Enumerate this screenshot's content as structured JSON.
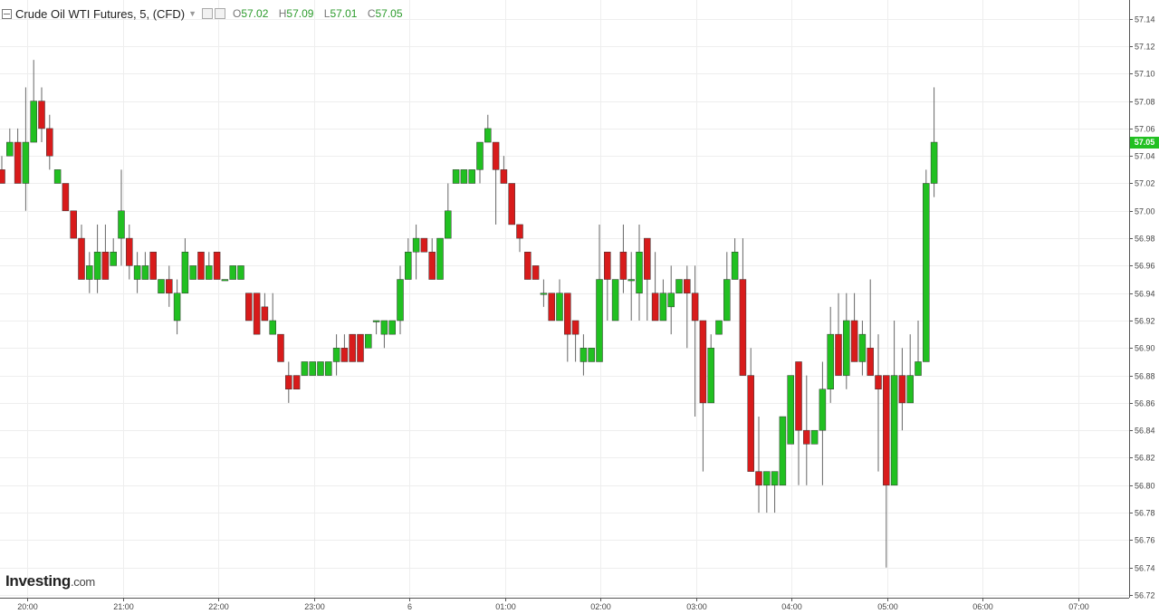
{
  "header": {
    "title": "Crude Oil WTI Futures, 5, (CFD)",
    "open_label": "O",
    "open": "57.02",
    "high_label": "H",
    "high": "57.09",
    "low_label": "L",
    "low": "57.01",
    "close_label": "C",
    "close": "57.05"
  },
  "logo": {
    "brand": "Investing",
    "suffix": ".com"
  },
  "colors": {
    "up": "#21c021",
    "down": "#d81b1b",
    "grid": "#eeeeee",
    "axis": "#555555",
    "last_price_bg": "#21c021"
  },
  "chart_data": {
    "type": "candlestick",
    "interval": "5",
    "last_price": "57.05",
    "x_ticks": [
      "20:00",
      "21:00",
      "22:00",
      "23:00",
      "6",
      "01:00",
      "02:00",
      "03:00",
      "04:00",
      "05:00",
      "06:00",
      "07:00"
    ],
    "y_ticks": [
      "57.14",
      "57.12",
      "57.10",
      "57.08",
      "57.06",
      "57.04",
      "57.02",
      "57.00",
      "56.98",
      "56.96",
      "56.94",
      "56.92",
      "56.90",
      "56.88",
      "56.86",
      "56.84",
      "56.82",
      "56.80",
      "56.78",
      "56.76",
      "56.74",
      "56.72"
    ],
    "ylim": [
      56.72,
      57.15
    ],
    "candles": [
      [
        57.03,
        57.04,
        57.02,
        57.02
      ],
      [
        57.04,
        57.06,
        57.04,
        57.05
      ],
      [
        57.05,
        57.06,
        57.02,
        57.02
      ],
      [
        57.02,
        57.09,
        57.0,
        57.05
      ],
      [
        57.05,
        57.11,
        57.05,
        57.08
      ],
      [
        57.08,
        57.09,
        57.05,
        57.06
      ],
      [
        57.06,
        57.07,
        57.03,
        57.04
      ],
      [
        57.02,
        57.03,
        57.02,
        57.03
      ],
      [
        57.02,
        57.02,
        57.0,
        57.0
      ],
      [
        57.0,
        57.0,
        56.98,
        56.98
      ],
      [
        56.98,
        56.99,
        56.95,
        56.95
      ],
      [
        56.95,
        56.97,
        56.94,
        56.96
      ],
      [
        56.95,
        56.99,
        56.94,
        56.97
      ],
      [
        56.97,
        56.99,
        56.95,
        56.95
      ],
      [
        56.96,
        56.98,
        56.96,
        56.97
      ],
      [
        56.98,
        57.03,
        56.96,
        57.0
      ],
      [
        56.98,
        56.99,
        56.95,
        56.96
      ],
      [
        56.95,
        56.97,
        56.94,
        56.96
      ],
      [
        56.95,
        56.97,
        56.95,
        56.96
      ],
      [
        56.97,
        56.97,
        56.95,
        56.95
      ],
      [
        56.94,
        56.95,
        56.94,
        56.95
      ],
      [
        56.95,
        56.96,
        56.93,
        56.94
      ],
      [
        56.92,
        56.95,
        56.91,
        56.94
      ],
      [
        56.94,
        56.98,
        56.94,
        56.97
      ],
      [
        56.95,
        56.96,
        56.95,
        56.96
      ],
      [
        56.97,
        56.97,
        56.95,
        56.95
      ],
      [
        56.95,
        56.97,
        56.95,
        56.96
      ],
      [
        56.97,
        56.97,
        56.95,
        56.95
      ],
      [
        56.95,
        56.95,
        56.95,
        56.95
      ],
      [
        56.95,
        56.96,
        56.95,
        56.96
      ],
      [
        56.95,
        56.96,
        56.95,
        56.96
      ],
      [
        56.94,
        56.94,
        56.92,
        56.92
      ],
      [
        56.94,
        56.94,
        56.91,
        56.91
      ],
      [
        56.93,
        56.94,
        56.92,
        56.92
      ],
      [
        56.91,
        56.94,
        56.91,
        56.92
      ],
      [
        56.91,
        56.91,
        56.89,
        56.89
      ],
      [
        56.88,
        56.89,
        56.86,
        56.87
      ],
      [
        56.88,
        56.88,
        56.87,
        56.87
      ],
      [
        56.88,
        56.89,
        56.88,
        56.89
      ],
      [
        56.88,
        56.89,
        56.88,
        56.89
      ],
      [
        56.88,
        56.89,
        56.88,
        56.89
      ],
      [
        56.88,
        56.89,
        56.88,
        56.89
      ],
      [
        56.89,
        56.91,
        56.88,
        56.9
      ],
      [
        56.9,
        56.91,
        56.89,
        56.89
      ],
      [
        56.91,
        56.91,
        56.89,
        56.89
      ],
      [
        56.91,
        56.91,
        56.89,
        56.89
      ],
      [
        56.9,
        56.91,
        56.9,
        56.91
      ],
      [
        56.92,
        56.92,
        56.91,
        56.92
      ],
      [
        56.91,
        56.92,
        56.9,
        56.92
      ],
      [
        56.91,
        56.92,
        56.91,
        56.92
      ],
      [
        56.92,
        56.96,
        56.91,
        56.95
      ],
      [
        56.95,
        56.98,
        56.95,
        56.97
      ],
      [
        56.97,
        56.99,
        56.95,
        56.98
      ],
      [
        56.98,
        56.98,
        56.97,
        56.97
      ],
      [
        56.97,
        56.98,
        56.95,
        56.95
      ],
      [
        56.95,
        56.98,
        56.95,
        56.98
      ],
      [
        56.98,
        57.02,
        56.98,
        57.0
      ],
      [
        57.02,
        57.03,
        57.02,
        57.03
      ],
      [
        57.02,
        57.03,
        57.02,
        57.03
      ],
      [
        57.02,
        57.03,
        57.02,
        57.03
      ],
      [
        57.03,
        57.05,
        57.02,
        57.05
      ],
      [
        57.05,
        57.07,
        57.05,
        57.06
      ],
      [
        57.05,
        57.05,
        56.99,
        57.03
      ],
      [
        57.03,
        57.04,
        57.02,
        57.02
      ],
      [
        57.02,
        57.02,
        56.99,
        56.99
      ],
      [
        56.99,
        56.99,
        56.97,
        56.98
      ],
      [
        56.97,
        56.97,
        56.95,
        56.95
      ],
      [
        56.96,
        56.96,
        56.95,
        56.95
      ],
      [
        56.94,
        56.95,
        56.93,
        56.94
      ],
      [
        56.94,
        56.94,
        56.92,
        56.92
      ],
      [
        56.92,
        56.95,
        56.92,
        56.94
      ],
      [
        56.94,
        56.94,
        56.89,
        56.91
      ],
      [
        56.92,
        56.92,
        56.89,
        56.91
      ],
      [
        56.89,
        56.91,
        56.88,
        56.9
      ],
      [
        56.89,
        56.9,
        56.89,
        56.9
      ],
      [
        56.89,
        56.99,
        56.89,
        56.95
      ],
      [
        56.97,
        56.97,
        56.92,
        56.95
      ],
      [
        56.92,
        56.95,
        56.92,
        56.95
      ],
      [
        56.97,
        56.99,
        56.94,
        56.95
      ],
      [
        56.95,
        56.97,
        56.92,
        56.95
      ],
      [
        56.94,
        56.99,
        56.92,
        56.97
      ],
      [
        56.98,
        56.98,
        56.92,
        56.95
      ],
      [
        56.94,
        56.97,
        56.92,
        56.92
      ],
      [
        56.92,
        56.95,
        56.92,
        56.94
      ],
      [
        56.93,
        56.96,
        56.91,
        56.94
      ],
      [
        56.94,
        56.95,
        56.94,
        56.95
      ],
      [
        56.95,
        56.96,
        56.9,
        56.94
      ],
      [
        56.94,
        56.96,
        56.85,
        56.92
      ],
      [
        56.92,
        56.92,
        56.81,
        56.86
      ],
      [
        56.86,
        56.91,
        56.86,
        56.9
      ],
      [
        56.91,
        56.92,
        56.91,
        56.92
      ],
      [
        56.92,
        56.97,
        56.92,
        56.95
      ],
      [
        56.95,
        56.98,
        56.95,
        56.97
      ],
      [
        56.95,
        56.98,
        56.88,
        56.88
      ],
      [
        56.88,
        56.9,
        56.81,
        56.81
      ],
      [
        56.81,
        56.85,
        56.78,
        56.8
      ],
      [
        56.8,
        56.81,
        56.78,
        56.81
      ],
      [
        56.8,
        56.81,
        56.78,
        56.81
      ],
      [
        56.8,
        56.85,
        56.8,
        56.85
      ],
      [
        56.83,
        56.88,
        56.83,
        56.88
      ],
      [
        56.89,
        56.89,
        56.8,
        56.84
      ],
      [
        56.84,
        56.88,
        56.8,
        56.83
      ],
      [
        56.83,
        56.84,
        56.83,
        56.84
      ],
      [
        56.84,
        56.89,
        56.8,
        56.87
      ],
      [
        56.87,
        56.93,
        56.86,
        56.91
      ],
      [
        56.91,
        56.94,
        56.88,
        56.88
      ],
      [
        56.88,
        56.94,
        56.87,
        56.92
      ],
      [
        56.92,
        56.94,
        56.89,
        56.89
      ],
      [
        56.89,
        56.92,
        56.88,
        56.91
      ],
      [
        56.9,
        56.95,
        56.88,
        56.88
      ],
      [
        56.88,
        56.91,
        56.81,
        56.87
      ],
      [
        56.88,
        56.88,
        56.74,
        56.8
      ],
      [
        56.8,
        56.92,
        56.8,
        56.88
      ],
      [
        56.88,
        56.9,
        56.84,
        56.86
      ],
      [
        56.86,
        56.91,
        56.86,
        56.88
      ],
      [
        56.88,
        56.92,
        56.88,
        56.89
      ],
      [
        56.89,
        57.03,
        56.89,
        57.02
      ],
      [
        57.02,
        57.09,
        57.01,
        57.05
      ]
    ]
  }
}
